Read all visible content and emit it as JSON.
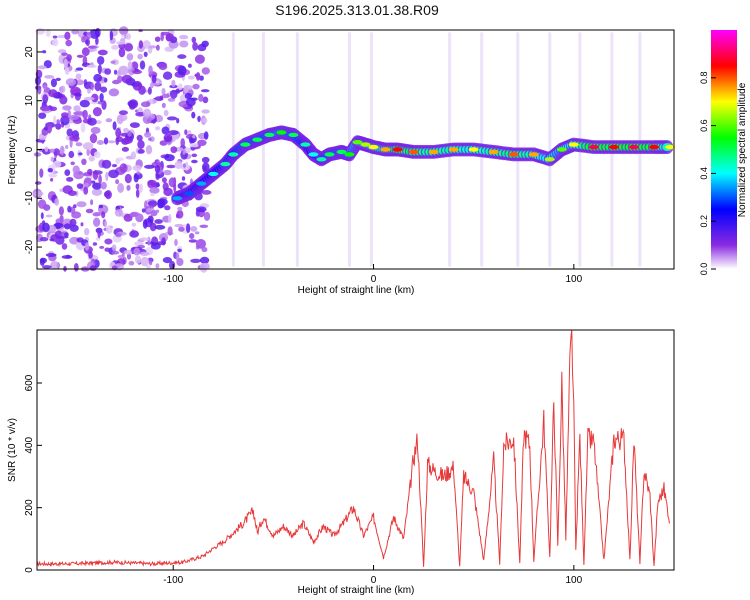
{
  "title": "S196.2025.313.01.38.R09",
  "chart_data": [
    {
      "type": "heatmap",
      "xlabel": "Height of straight line (km)",
      "ylabel": "Frequency (Hz)",
      "xlim": [
        -168,
        150
      ],
      "ylim": [
        -24.5,
        24.5
      ],
      "x_ticks": [
        -100,
        0,
        100
      ],
      "y_ticks": [
        20,
        10,
        0,
        -10,
        -20
      ],
      "colorbar": {
        "label": "Normalized spectral amplitude",
        "range": [
          0,
          1
        ],
        "ticks": [
          "0.0",
          "0.2",
          "0.4",
          "0.6",
          "0.8"
        ],
        "colors": [
          "#ffffff",
          "#8a2be2",
          "#0000ff",
          "#00ffff",
          "#00ff00",
          "#ffff00",
          "#ff0000",
          "#ff00ff"
        ]
      },
      "ridge": {
        "x": [
          -98,
          -92,
          -86,
          -80,
          -74,
          -70,
          -64,
          -58,
          -52,
          -46,
          -40,
          -34,
          -30,
          -26,
          -22,
          -16,
          -12,
          -8,
          -4,
          0,
          6,
          12,
          20,
          30,
          40,
          50,
          60,
          70,
          80,
          88,
          94,
          100,
          110,
          120,
          130,
          140,
          148
        ],
        "frequency_hz": [
          -10,
          -9,
          -7,
          -5,
          -3,
          -1,
          1,
          2,
          3,
          3.5,
          3,
          1,
          -1,
          -2,
          -1,
          -0.5,
          -1,
          1.5,
          1,
          0.5,
          0,
          0,
          -0.5,
          -0.5,
          0,
          0,
          -0.5,
          -1,
          -1,
          -2,
          0,
          1,
          0.5,
          0.5,
          0.5,
          0.5,
          0.5
        ],
        "amplitude": [
          0.35,
          0.3,
          0.35,
          0.4,
          0.45,
          0.45,
          0.5,
          0.5,
          0.5,
          0.55,
          0.5,
          0.45,
          0.4,
          0.45,
          0.5,
          0.5,
          0.55,
          0.6,
          0.65,
          0.7,
          0.75,
          0.85,
          0.8,
          0.75,
          0.75,
          0.7,
          0.75,
          0.8,
          0.75,
          0.65,
          0.6,
          0.7,
          0.9,
          0.85,
          0.9,
          0.85,
          0.7
        ]
      }
    },
    {
      "type": "line",
      "xlabel": "Height of straight line (km)",
      "ylabel": "SNR (10 * v/v)",
      "xlim": [
        -168,
        150
      ],
      "ylim": [
        0,
        770
      ],
      "x_ticks": [
        -100,
        0,
        100
      ],
      "y_ticks": [
        0,
        200,
        400,
        600
      ],
      "line_color": "#e8393a",
      "series": [
        {
          "x": [
            -168,
            -150,
            -130,
            -110,
            -95,
            -85,
            -80,
            -75,
            -70,
            -65,
            -60,
            -58,
            -55,
            -50,
            -45,
            -40,
            -35,
            -30,
            -25,
            -20,
            -15,
            -10,
            -5,
            0,
            5,
            10,
            15,
            18,
            20,
            22,
            25,
            27,
            30,
            35,
            40,
            43,
            45,
            47,
            50,
            55,
            60,
            63,
            65,
            70,
            73,
            75,
            78,
            80,
            85,
            88,
            90,
            92,
            94,
            96,
            98,
            99,
            100,
            101,
            103,
            105,
            107,
            110,
            115,
            120,
            125,
            128,
            130,
            133,
            135,
            138,
            140,
            142,
            145,
            148
          ],
          "y": [
            20,
            20,
            25,
            20,
            25,
            45,
            70,
            90,
            120,
            150,
            190,
            120,
            170,
            110,
            140,
            110,
            150,
            90,
            140,
            110,
            150,
            200,
            110,
            170,
            40,
            170,
            100,
            250,
            360,
            420,
            10,
            340,
            320,
            300,
            330,
            10,
            300,
            280,
            250,
            30,
            350,
            20,
            400,
            420,
            20,
            440,
            400,
            30,
            480,
            40,
            550,
            80,
            600,
            100,
            650,
            760,
            500,
            60,
            430,
            20,
            420,
            410,
            30,
            420,
            420,
            30,
            420,
            20,
            320,
            240,
            10,
            220,
            260,
            150
          ]
        }
      ]
    }
  ]
}
